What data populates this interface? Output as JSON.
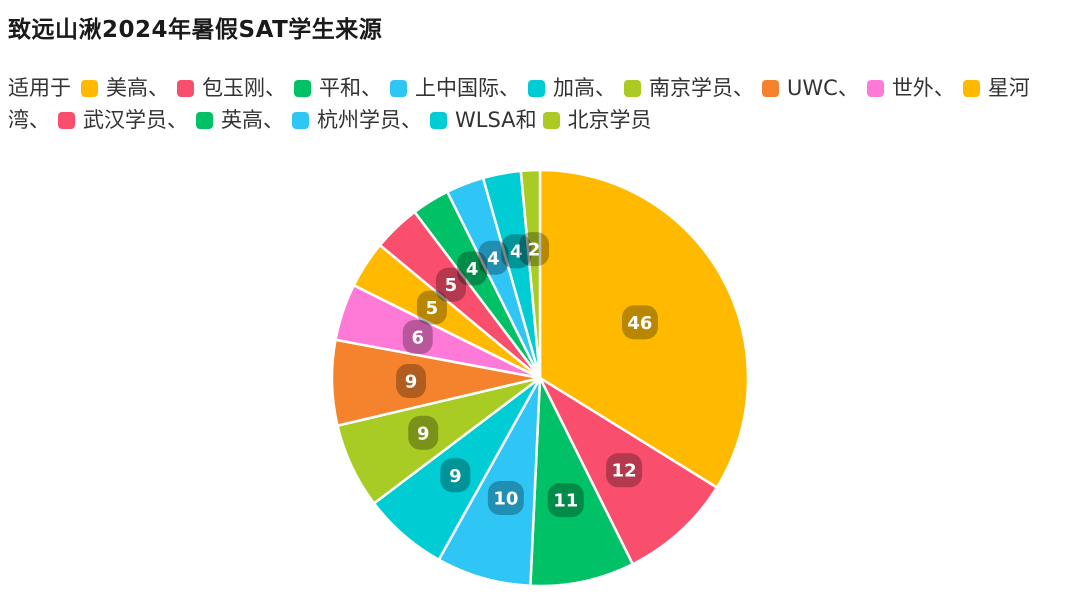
{
  "chart_data": {
    "type": "pie",
    "title": "致远山湫2024年暑假SAT学生来源",
    "legend_lead": "适用于",
    "legend_joiner": "和",
    "legend_separator": "、",
    "categories": [
      "美高",
      "包玉刚",
      "平和",
      "上中国际",
      "加高",
      "南京学员",
      "UWC",
      "世外",
      "星河湾",
      "武汉学员",
      "英高",
      "杭州学员",
      "WLSA",
      "北京学员"
    ],
    "values": [
      46,
      12,
      11,
      10,
      9,
      9,
      9,
      6,
      5,
      5,
      4,
      4,
      4,
      2
    ],
    "colors": [
      "#FFBA00",
      "#FA4E6D",
      "#00C165",
      "#2FC6F5",
      "#00CDD3",
      "#A8CC24",
      "#F5822C",
      "#FF7AD7",
      "#FFBA00",
      "#FA4E6D",
      "#00C165",
      "#2FC6F5",
      "#00CDD3",
      "#A8CC24"
    ],
    "data_labels": true,
    "legend_position": "top-left"
  }
}
